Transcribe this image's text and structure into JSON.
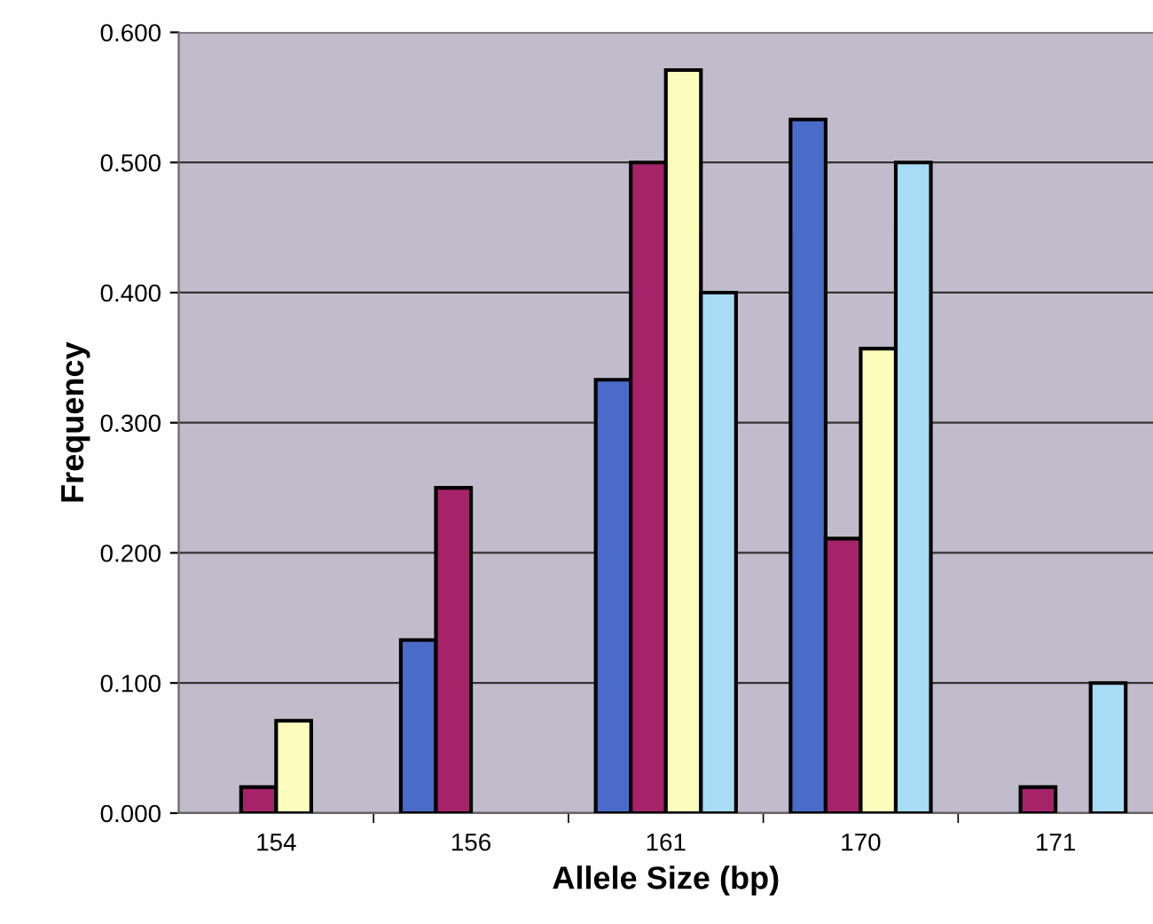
{
  "chart_data": {
    "type": "bar",
    "xlabel": "Allele Size (bp)",
    "ylabel": "Frequency",
    "categories": [
      "154",
      "156",
      "161",
      "170",
      "171"
    ],
    "series": [
      {
        "color": "#4a6cc8",
        "values": [
          0,
          0.133,
          0.333,
          0.533,
          0
        ]
      },
      {
        "color": "#a6236a",
        "values": [
          0.02,
          0.25,
          0.5,
          0.211,
          0.02
        ]
      },
      {
        "color": "#fcfcbc",
        "values": [
          0.071,
          0,
          0.571,
          0.357,
          0
        ]
      },
      {
        "color": "#a8dcf4",
        "values": [
          0,
          0,
          0.4,
          0.5,
          0.1
        ]
      }
    ],
    "ylim": [
      0,
      0.6
    ],
    "yticks": [
      {
        "value": 0,
        "label": "0.000"
      },
      {
        "value": 0.1,
        "label": "0.100"
      },
      {
        "value": 0.2,
        "label": "0.200"
      },
      {
        "value": 0.3,
        "label": "0.300"
      },
      {
        "value": 0.4,
        "label": "0.400"
      },
      {
        "value": 0.5,
        "label": "0.500"
      },
      {
        "value": 0.6,
        "label": "0.600"
      }
    ],
    "grid": "y"
  }
}
